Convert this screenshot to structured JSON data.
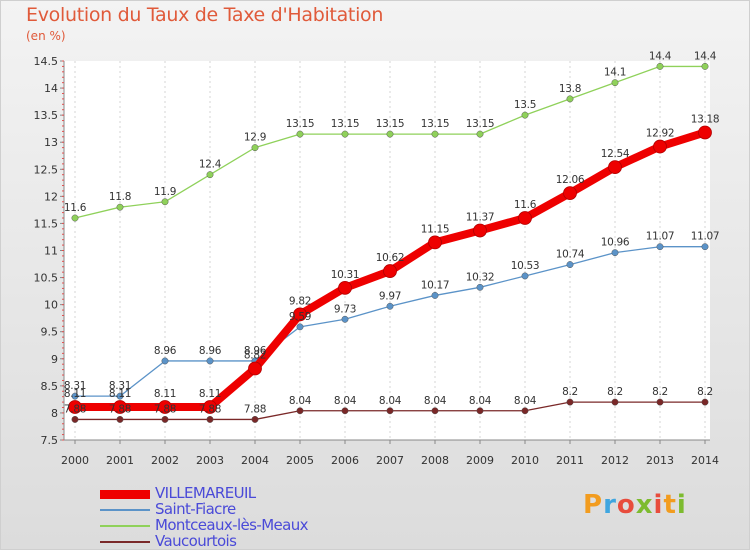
{
  "chart_data": {
    "type": "line",
    "title": "Evolution du Taux de Taxe d'Habitation",
    "subtitle": "(en %)",
    "x": [
      2000,
      2001,
      2002,
      2003,
      2004,
      2005,
      2006,
      2007,
      2008,
      2009,
      2010,
      2011,
      2012,
      2013,
      2014
    ],
    "x_tick_labels": [
      "2000",
      "2001",
      "2002",
      "2003",
      "2004",
      "2005",
      "2006",
      "2007",
      "2008",
      "2009",
      "2010",
      "2011",
      "2012",
      "2013",
      "2014"
    ],
    "ylim": [
      7.5,
      14.5
    ],
    "y_ticks": [
      7.5,
      8,
      8.5,
      9,
      9.5,
      10,
      10.5,
      11,
      11.5,
      12,
      12.5,
      13,
      13.5,
      14,
      14.5
    ],
    "y_tick_labels": [
      "7.5",
      "8",
      "8.5",
      "9",
      "9.5",
      "10",
      "10.5",
      "11",
      "11.5",
      "12",
      "12.5",
      "13",
      "13.5",
      "14",
      "14.5"
    ],
    "grid": "vertical-dashed",
    "legend_position": "bottom-left",
    "series": [
      {
        "name": "VILLEMAREUIL",
        "color": "#ee0000",
        "values": [
          8.11,
          8.11,
          8.11,
          8.11,
          8.82,
          9.82,
          10.31,
          10.62,
          11.15,
          11.37,
          11.6,
          12.06,
          12.54,
          12.92,
          13.18
        ],
        "labels": [
          "8.11",
          "8.11",
          "8.11",
          "8.11",
          "8.82",
          "9.82",
          "10.31",
          "10.62",
          "11.15",
          "11.37",
          "11.6",
          "12.06",
          "12.54",
          "12.92",
          "13.18"
        ]
      },
      {
        "name": "Saint-Fiacre",
        "color": "#5b93c8",
        "values": [
          8.31,
          8.31,
          8.96,
          8.96,
          8.96,
          9.59,
          9.73,
          9.97,
          10.17,
          10.32,
          10.53,
          10.74,
          10.96,
          11.07,
          11.07
        ],
        "labels": [
          "8.31",
          "8.31",
          "8.96",
          "8.96",
          "8.96",
          "9.59",
          "9.73",
          "9.97",
          "10.17",
          "10.32",
          "10.53",
          "10.74",
          "10.96",
          "11.07",
          "11.07"
        ]
      },
      {
        "name": "Montceaux-lès-Meaux",
        "color": "#8fd15a",
        "values": [
          11.6,
          11.8,
          11.9,
          12.4,
          12.9,
          13.15,
          13.15,
          13.15,
          13.15,
          13.15,
          13.5,
          13.8,
          14.1,
          14.4,
          14.4
        ],
        "labels": [
          "11.6",
          "11.8",
          "11.9",
          "12.4",
          "12.9",
          "13.15",
          "13.15",
          "13.15",
          "13.15",
          "13.15",
          "13.5",
          "13.8",
          "14.1",
          "14.4",
          "14.4"
        ]
      },
      {
        "name": "Vaucourtois",
        "color": "#7a2828",
        "values": [
          7.88,
          7.88,
          7.88,
          7.88,
          7.88,
          8.04,
          8.04,
          8.04,
          8.04,
          8.04,
          8.04,
          8.2,
          8.2,
          8.2,
          8.2
        ],
        "labels": [
          "7.88",
          "7.88",
          "7.88",
          "7.88",
          "7.88",
          "8.04",
          "8.04",
          "8.04",
          "8.04",
          "8.04",
          "8.04",
          "8.2",
          "8.2",
          "8.2",
          "8.2"
        ]
      }
    ]
  },
  "logo_text": "Proxiti"
}
